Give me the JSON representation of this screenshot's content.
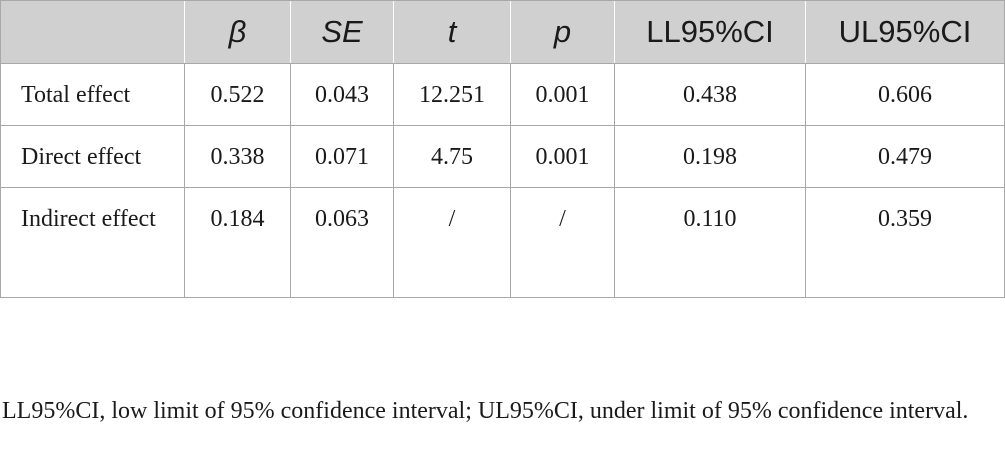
{
  "table": {
    "headers": [
      "",
      "β",
      "SE",
      "t",
      "p",
      "LL95%CI",
      "UL95%CI"
    ],
    "rows": [
      {
        "label": "Total effect",
        "values": [
          "0.522",
          "0.043",
          "12.251",
          "0.001",
          "0.438",
          "0.606"
        ]
      },
      {
        "label": "Direct effect",
        "values": [
          "0.338",
          "0.071",
          "4.75",
          "0.001",
          "0.198",
          "0.479"
        ]
      },
      {
        "label": "Indirect effect",
        "values": [
          "0.184",
          "0.063",
          "/",
          "/",
          "0.110",
          "0.359"
        ]
      }
    ]
  },
  "footnote": "LL95%CI, low limit of 95% confidence interval; UL95%CI, under limit of 95% confidence interval.",
  "colors": {
    "header_background": "#d0d0d0",
    "border": "#a8a8a8",
    "text": "#1a1a1a"
  }
}
